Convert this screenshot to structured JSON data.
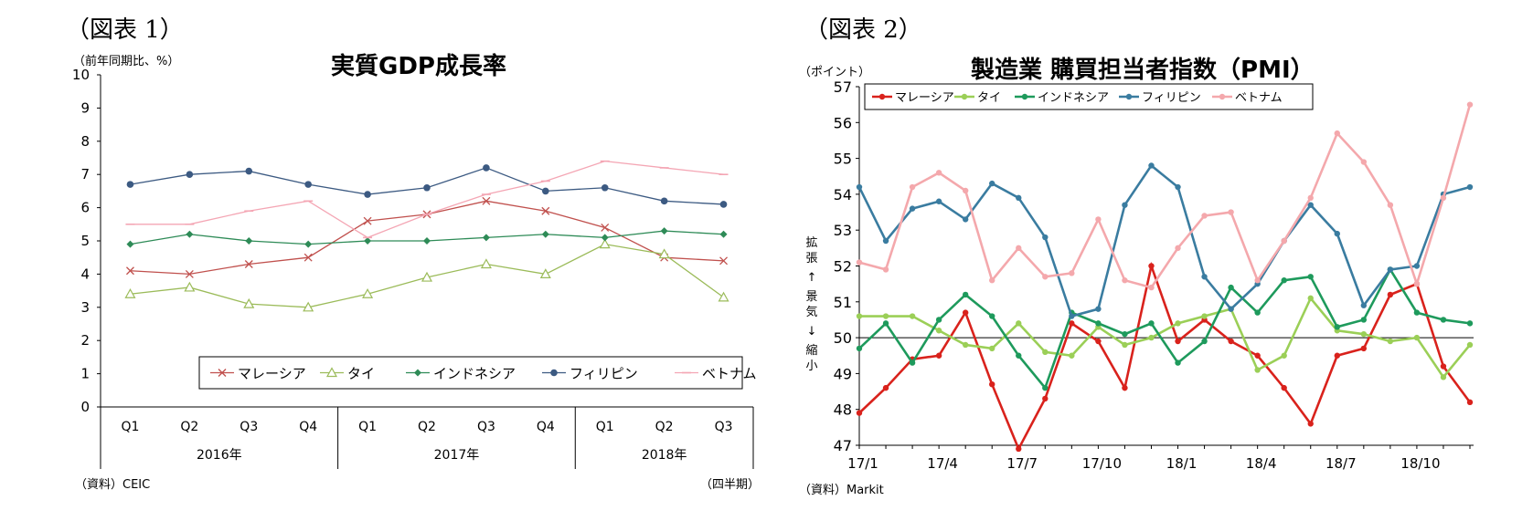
{
  "chart_data": [
    {
      "type": "line",
      "figure_label": "（図表 1）",
      "title": "実質GDP成長率",
      "ylabel": "（前年同期比、%）",
      "ylim": [
        0,
        10
      ],
      "yticks": [
        "0",
        "1",
        "2",
        "3",
        "4",
        "5",
        "6",
        "7",
        "8",
        "9",
        "10"
      ],
      "categories": [
        "Q1",
        "Q2",
        "Q3",
        "Q4",
        "Q1",
        "Q2",
        "Q3",
        "Q4",
        "Q1",
        "Q2",
        "Q3"
      ],
      "year_groups": [
        {
          "label": "2016年",
          "count": 4
        },
        {
          "label": "2017年",
          "count": 4
        },
        {
          "label": "2018年",
          "count": 3
        }
      ],
      "xlabel_note": "（四半期）",
      "source": "（資料）CEIC",
      "legend_position": "bottom-right",
      "series": [
        {
          "name": "マレーシア",
          "color": "#c0504d",
          "marker": "asterisk",
          "values": [
            4.1,
            4.0,
            4.3,
            4.5,
            5.6,
            5.8,
            6.2,
            5.9,
            5.4,
            4.5,
            4.4
          ]
        },
        {
          "name": "タイ",
          "color": "#9bbb59",
          "marker": "triangle",
          "values": [
            3.4,
            3.6,
            3.1,
            3.0,
            3.4,
            3.9,
            4.3,
            4.0,
            4.9,
            4.6,
            3.3
          ]
        },
        {
          "name": "インドネシア",
          "color": "#2e8b57",
          "marker": "diamond",
          "values": [
            4.9,
            5.2,
            5.0,
            4.9,
            5.0,
            5.0,
            5.1,
            5.2,
            5.1,
            5.3,
            5.2
          ]
        },
        {
          "name": "フィリピン",
          "color": "#3c5a82",
          "marker": "circle",
          "values": [
            6.7,
            7.0,
            7.1,
            6.7,
            6.4,
            6.6,
            7.2,
            6.5,
            6.6,
            6.2,
            6.1
          ]
        },
        {
          "name": "ベトナム",
          "color": "#f4a6b4",
          "marker": "dash",
          "values": [
            5.5,
            5.5,
            5.9,
            6.2,
            5.1,
            5.8,
            6.4,
            6.8,
            7.4,
            7.2,
            7.0
          ]
        }
      ]
    },
    {
      "type": "line",
      "figure_label": "（図表 2）",
      "title": "製造業 購買担当者指数（PMI）",
      "ylabel": "（ポイント）",
      "ylim": [
        47,
        57
      ],
      "yticks": [
        "47",
        "48",
        "49",
        "50",
        "51",
        "52",
        "53",
        "54",
        "55",
        "56",
        "57"
      ],
      "reference_line": 50,
      "xtick_labels": [
        "17/1",
        "17/4",
        "17/7",
        "17/10",
        "18/1",
        "18/4",
        "18/7",
        "18/10"
      ],
      "xtick_positions": [
        0,
        3,
        6,
        9,
        12,
        15,
        18,
        21
      ],
      "x": [
        "17/1",
        "17/2",
        "17/3",
        "17/4",
        "17/5",
        "17/6",
        "17/7",
        "17/8",
        "17/9",
        "17/10",
        "17/11",
        "17/12",
        "18/1",
        "18/2",
        "18/3",
        "18/4",
        "18/5",
        "18/6",
        "18/7",
        "18/8",
        "18/9",
        "18/10",
        "18/11",
        "18/12"
      ],
      "side_label_top": "拡張",
      "side_label_mid": "景気",
      "side_label_bottom": "縮小",
      "arrow_up": "↑",
      "arrow_down": "↓",
      "source": "（資料）Markit",
      "legend_position": "top",
      "series": [
        {
          "name": "マレーシア",
          "color": "#d9221c",
          "values": [
            47.9,
            48.6,
            49.4,
            49.5,
            50.7,
            48.7,
            46.9,
            48.3,
            50.4,
            49.9,
            48.6,
            52.0,
            49.9,
            50.5,
            49.9,
            49.5,
            48.6,
            47.6,
            49.5,
            49.7,
            51.2,
            51.5,
            49.2,
            48.2
          ]
        },
        {
          "name": "タイ",
          "color": "#9bcf57",
          "values": [
            50.6,
            50.6,
            50.6,
            50.2,
            49.8,
            49.7,
            50.4,
            49.6,
            49.5,
            50.3,
            49.8,
            50.0,
            50.4,
            50.6,
            50.8,
            49.1,
            49.5,
            51.1,
            50.2,
            50.1,
            49.9,
            50.0,
            48.9,
            49.8
          ]
        },
        {
          "name": "インドネシア",
          "color": "#1e9a5c",
          "values": [
            49.7,
            50.4,
            49.3,
            50.5,
            51.2,
            50.6,
            49.5,
            48.6,
            50.7,
            50.4,
            50.1,
            50.4,
            49.3,
            49.9,
            51.4,
            50.7,
            51.6,
            51.7,
            50.3,
            50.5,
            51.9,
            50.7,
            50.5,
            50.4
          ]
        },
        {
          "name": "フィリピン",
          "color": "#3a7ca0",
          "values": [
            54.2,
            52.7,
            53.6,
            53.8,
            53.3,
            54.3,
            53.9,
            52.8,
            50.6,
            50.8,
            53.7,
            54.8,
            54.2,
            51.7,
            50.8,
            51.5,
            52.7,
            53.7,
            52.9,
            50.9,
            51.9,
            52.0,
            54.0,
            54.2
          ]
        },
        {
          "name": "ベトナム",
          "color": "#f4a8ac",
          "values": [
            52.1,
            51.9,
            54.2,
            54.6,
            54.1,
            51.6,
            52.5,
            51.7,
            51.8,
            53.3,
            51.6,
            51.4,
            52.5,
            53.4,
            53.5,
            51.6,
            52.7,
            53.9,
            55.7,
            54.9,
            53.7,
            51.5,
            53.9,
            56.5
          ]
        }
      ]
    }
  ]
}
